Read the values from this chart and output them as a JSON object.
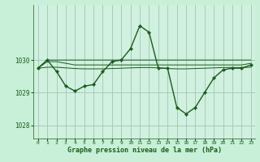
{
  "background_color": "#c8f0d8",
  "plot_bg_color": "#d0f0e0",
  "grid_color": "#a0c8b0",
  "line_color": "#1a5c1a",
  "xlabel": "Graphe pression niveau de la mer (hPa)",
  "xlim": [
    -0.5,
    23.5
  ],
  "ylim": [
    1027.6,
    1031.7
  ],
  "yticks": [
    1028,
    1029,
    1030
  ],
  "xticks": [
    0,
    1,
    2,
    3,
    4,
    5,
    6,
    7,
    8,
    9,
    10,
    11,
    12,
    13,
    14,
    15,
    16,
    17,
    18,
    19,
    20,
    21,
    22,
    23
  ],
  "series": [
    {
      "x": [
        0,
        1,
        2,
        3,
        4,
        5,
        6,
        7,
        8,
        9,
        10,
        11,
        12,
        13,
        14,
        15,
        16,
        17,
        18,
        19,
        20,
        21,
        22,
        23
      ],
      "y": [
        1029.75,
        1030.0,
        1030.0,
        1030.0,
        1030.0,
        1030.0,
        1030.0,
        1030.0,
        1030.0,
        1030.0,
        1030.0,
        1030.0,
        1030.0,
        1030.0,
        1030.0,
        1030.0,
        1030.0,
        1030.0,
        1030.0,
        1030.0,
        1030.0,
        1030.0,
        1030.0,
        1030.0
      ],
      "marker": false,
      "lw": 0.7
    },
    {
      "x": [
        0,
        1,
        2,
        3,
        4,
        5,
        6,
        7,
        8,
        9,
        10,
        11,
        12,
        13,
        14,
        15,
        16,
        17,
        18,
        19,
        20,
        21,
        22,
        23
      ],
      "y": [
        1029.75,
        1029.95,
        1029.95,
        1029.9,
        1029.85,
        1029.85,
        1029.85,
        1029.85,
        1029.85,
        1029.85,
        1029.85,
        1029.85,
        1029.85,
        1029.85,
        1029.85,
        1029.85,
        1029.85,
        1029.85,
        1029.85,
        1029.85,
        1029.85,
        1029.85,
        1029.85,
        1029.9
      ],
      "marker": false,
      "lw": 0.7
    },
    {
      "x": [
        0,
        1,
        2,
        3,
        4,
        5,
        6,
        7,
        8,
        9,
        10,
        11,
        12,
        13,
        14,
        15,
        16,
        17,
        18,
        19,
        20,
        21,
        22,
        23
      ],
      "y": [
        1029.75,
        1029.78,
        1029.78,
        1029.76,
        1029.74,
        1029.73,
        1029.73,
        1029.73,
        1029.74,
        1029.75,
        1029.76,
        1029.77,
        1029.77,
        1029.76,
        1029.74,
        1029.73,
        1029.73,
        1029.74,
        1029.75,
        1029.76,
        1029.77,
        1029.77,
        1029.77,
        1029.78
      ],
      "marker": false,
      "lw": 0.7
    },
    {
      "x": [
        0,
        1,
        2,
        3,
        4,
        5,
        6,
        7,
        8,
        9,
        10,
        11,
        12,
        13,
        14,
        15,
        16,
        17,
        18,
        19,
        20,
        21,
        22,
        23
      ],
      "y": [
        1029.75,
        1030.0,
        1029.65,
        1029.2,
        1029.05,
        1029.2,
        1029.25,
        1029.65,
        1029.95,
        1030.0,
        1030.35,
        1031.05,
        1030.85,
        1029.75,
        1029.75,
        1028.55,
        1028.35,
        1028.55,
        1029.0,
        1029.45,
        1029.7,
        1029.75,
        1029.75,
        1029.85
      ],
      "marker": true,
      "lw": 1.0
    }
  ]
}
